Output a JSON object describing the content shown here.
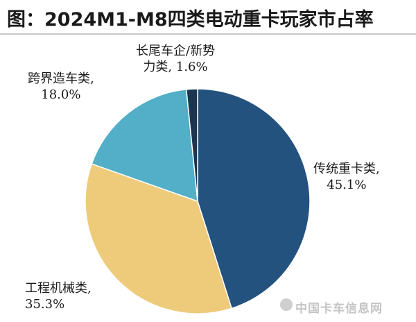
{
  "title": "图：2024M1-M8四类电动重卡玩家市占率",
  "chart_data": {
    "type": "pie",
    "title": "图：2024M1-M8四类电动重卡玩家市占率",
    "start_angle_deg": 0,
    "direction": "clockwise",
    "slices": [
      {
        "label": "传统重卡类,",
        "value": 45.1,
        "value_label": "45.1%",
        "color": "#24527f"
      },
      {
        "label": "工程机械类,",
        "value": 35.3,
        "value_label": "35.3%",
        "color": "#eecb7b"
      },
      {
        "label": "跨界造车类,",
        "value": 18.0,
        "value_label": "18.0%",
        "color": "#52afc7"
      },
      {
        "label": "长尾车企/新势力类,",
        "value": 1.6,
        "value_label": "1.6%",
        "color": "#1c3550"
      }
    ]
  },
  "labels": {
    "traditional": {
      "line1": "传统重卡类,",
      "line2": "45.1%"
    },
    "engineering": {
      "line1": "工程机械类,",
      "line2": "35.3%"
    },
    "crossover": {
      "line1": "跨界造车类,",
      "line2": "18.0%"
    },
    "longtail": {
      "line1": "长尾车企/新势",
      "line2": "力类, 1.6%"
    }
  },
  "watermark": "中国卡车信息网"
}
